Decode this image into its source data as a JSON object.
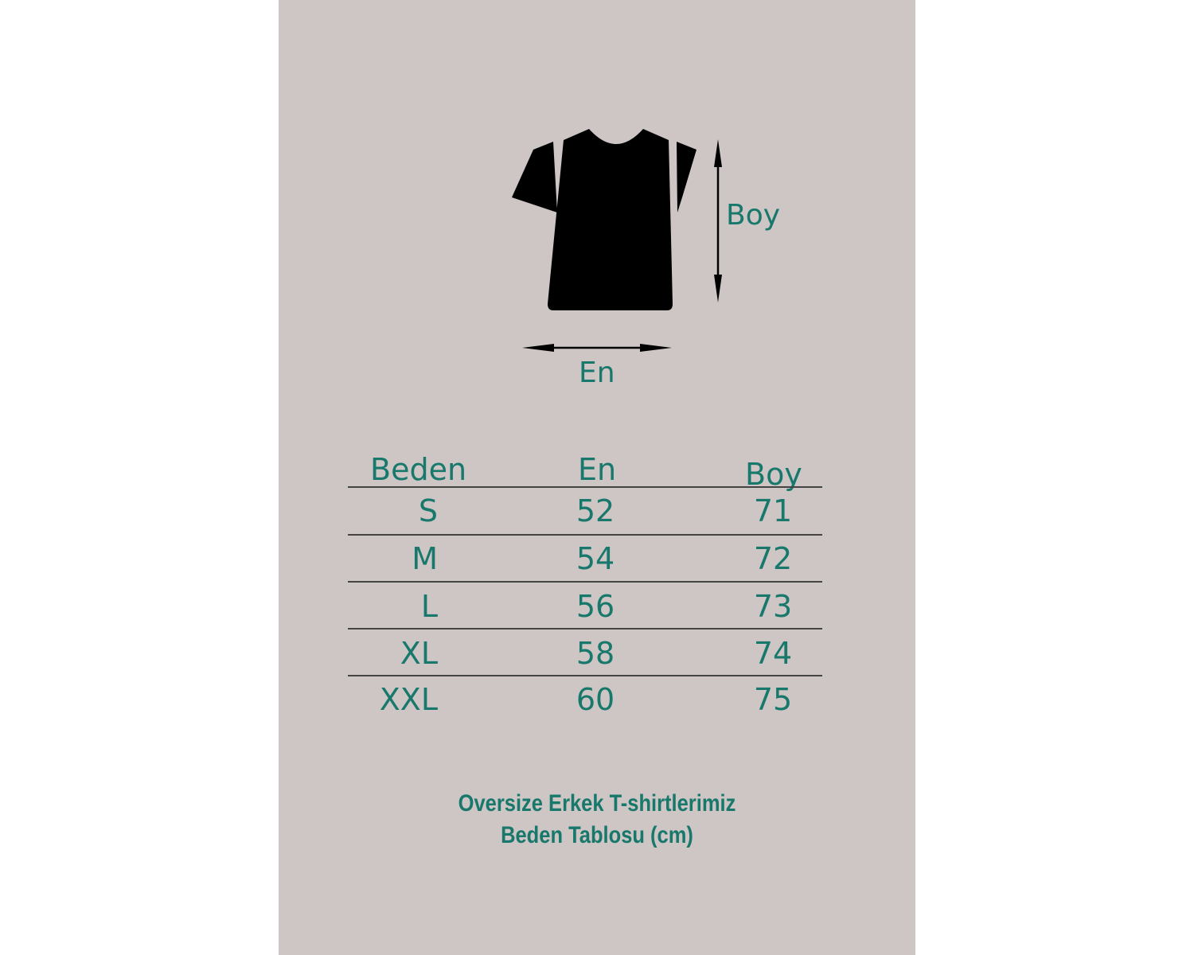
{
  "diagram": {
    "height_label": "Boy",
    "width_label": "En"
  },
  "table": {
    "headers": [
      "Beden",
      "En",
      "Boy"
    ],
    "rows": [
      {
        "size": "S",
        "en": "52",
        "boy": "71"
      },
      {
        "size": "M",
        "en": "54",
        "boy": "72"
      },
      {
        "size": "L",
        "en": "56",
        "boy": "73"
      },
      {
        "size": "XL",
        "en": "58",
        "boy": "74"
      },
      {
        "size": "XXL",
        "en": "60",
        "boy": "75"
      }
    ]
  },
  "caption": {
    "line1": "Oversize Erkek T-shirtlerimiz",
    "line2": "Beden Tablosu (cm)"
  },
  "colors": {
    "background": "#cec5c5",
    "text": "#17786b",
    "shirt": "#000000"
  }
}
